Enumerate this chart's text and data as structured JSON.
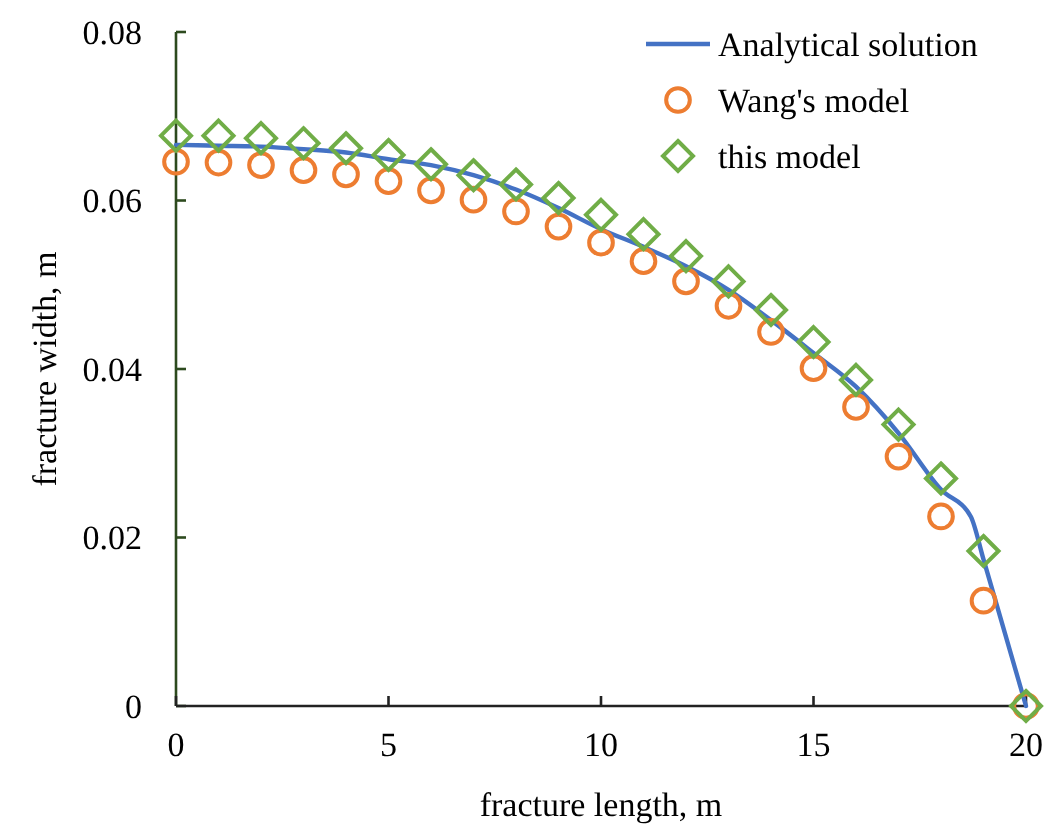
{
  "chart_data": {
    "type": "scatter",
    "xlabel": "fracture length, m",
    "ylabel": "fracture width, m",
    "xlim": [
      0,
      20
    ],
    "xticks": [
      0,
      5,
      10,
      15,
      20
    ],
    "ylim": [
      0,
      0.08
    ],
    "yticks": [
      0,
      0.02,
      0.04,
      0.06,
      0.08
    ],
    "grid": false,
    "legend": "top right",
    "series": [
      {
        "name": "Analytical solution",
        "type": "line",
        "color": "#4472c4",
        "marker": "none",
        "line_style": "solid",
        "x": [
          0,
          1,
          2,
          3,
          4,
          5,
          6,
          7,
          8,
          9,
          10,
          11,
          12,
          13,
          14,
          15,
          16,
          17,
          18,
          18.7,
          19,
          19.5,
          20
        ],
        "values": [
          0.0666,
          0.0665,
          0.0664,
          0.0661,
          0.0657,
          0.0649,
          0.0642,
          0.063,
          0.0613,
          0.0591,
          0.0566,
          0.0545,
          0.0522,
          0.0494,
          0.0458,
          0.0419,
          0.0379,
          0.0324,
          0.0257,
          0.0225,
          0.0174,
          0.0087,
          0
        ]
      },
      {
        "name": "Wang's model",
        "type": "scatter",
        "color": "#ed7d31",
        "marker": "circle",
        "x": [
          0,
          1,
          2,
          3,
          4,
          5,
          6,
          7,
          8,
          9,
          10,
          11,
          12,
          13,
          14,
          15,
          16,
          17,
          18,
          19,
          20
        ],
        "values": [
          0.0646,
          0.0645,
          0.0642,
          0.0636,
          0.0631,
          0.0623,
          0.0612,
          0.0601,
          0.0587,
          0.0569,
          0.055,
          0.0528,
          0.0504,
          0.0475,
          0.0444,
          0.0401,
          0.0355,
          0.0296,
          0.0225,
          0.0125,
          0
        ]
      },
      {
        "name": "this model",
        "type": "scatter",
        "color": "#70ad47",
        "marker": "diamond",
        "x": [
          0,
          1,
          2,
          3,
          4,
          5,
          6,
          7,
          8,
          9,
          10,
          11,
          12,
          13,
          14,
          15,
          16,
          17,
          18,
          19,
          20
        ],
        "values": [
          0.0677,
          0.0677,
          0.0674,
          0.0668,
          0.0662,
          0.0654,
          0.0643,
          0.063,
          0.0619,
          0.0603,
          0.0583,
          0.056,
          0.0534,
          0.0504,
          0.047,
          0.0432,
          0.0387,
          0.0334,
          0.027,
          0.0184,
          0
        ]
      }
    ]
  }
}
